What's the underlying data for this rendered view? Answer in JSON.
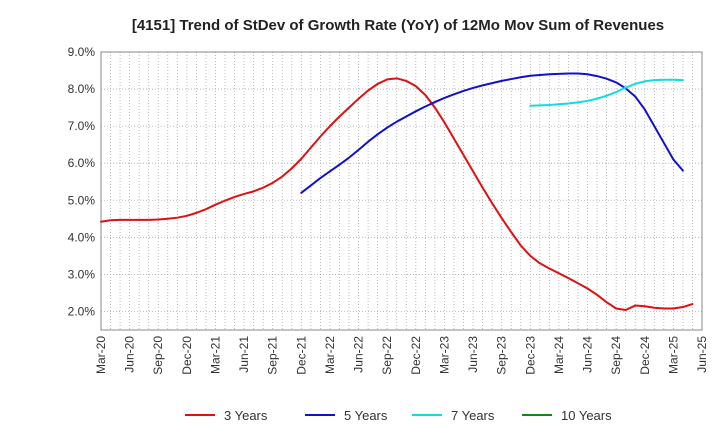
{
  "chart_data": {
    "type": "line",
    "title": "[4151]  Trend of StDev of Growth Rate (YoY) of 12Mo Mov Sum of Revenues",
    "xlabel": "",
    "ylabel": "",
    "ylim": [
      1.5,
      9.0
    ],
    "y_ticks": [
      2.0,
      3.0,
      4.0,
      5.0,
      6.0,
      7.0,
      8.0,
      9.0
    ],
    "y_tick_labels": [
      "2.0%",
      "3.0%",
      "4.0%",
      "5.0%",
      "6.0%",
      "7.0%",
      "8.0%",
      "9.0%"
    ],
    "x_tick_labels": [
      "Mar-20",
      "Jun-20",
      "Sep-20",
      "Dec-20",
      "Mar-21",
      "Jun-21",
      "Sep-21",
      "Dec-21",
      "Mar-22",
      "Jun-22",
      "Sep-22",
      "Dec-22",
      "Mar-23",
      "Jun-23",
      "Sep-23",
      "Dec-23",
      "Mar-24",
      "Jun-24",
      "Sep-24",
      "Dec-24",
      "Mar-25",
      "Jun-25"
    ],
    "grid": true,
    "legend_position": "bottom",
    "series": [
      {
        "name": "3 Years",
        "color": "#dd1111",
        "start_index": 0,
        "values": [
          4.42,
          4.46,
          4.47,
          4.47,
          4.47,
          4.47,
          4.48,
          4.5,
          4.53,
          4.58,
          4.66,
          4.76,
          4.88,
          4.99,
          5.09,
          5.17,
          5.24,
          5.34,
          5.47,
          5.64,
          5.86,
          6.12,
          6.42,
          6.72,
          7.0,
          7.26,
          7.5,
          7.74,
          7.96,
          8.14,
          8.26,
          8.29,
          8.22,
          8.08,
          7.84,
          7.5,
          7.1,
          6.66,
          6.22,
          5.78,
          5.34,
          4.92,
          4.52,
          4.14,
          3.78,
          3.5,
          3.3,
          3.16,
          3.03,
          2.9,
          2.76,
          2.62,
          2.45,
          2.25,
          2.08,
          2.04,
          2.16,
          2.14,
          2.1,
          2.08,
          2.08,
          2.12,
          2.2
        ]
      },
      {
        "name": "5 Years",
        "color": "#1111cc",
        "start_index": 21,
        "values": [
          5.2,
          5.4,
          5.6,
          5.78,
          5.96,
          6.15,
          6.36,
          6.58,
          6.78,
          6.96,
          7.12,
          7.26,
          7.4,
          7.53,
          7.65,
          7.76,
          7.86,
          7.95,
          8.03,
          8.1,
          8.16,
          8.22,
          8.27,
          8.32,
          8.36,
          8.38,
          8.4,
          8.41,
          8.42,
          8.42,
          8.4,
          8.35,
          8.28,
          8.18,
          8.02,
          7.8,
          7.45,
          7.0,
          6.55,
          6.1,
          5.8
        ]
      },
      {
        "name": "7 Years",
        "color": "#11dddd",
        "start_index": 45,
        "values": [
          7.55,
          7.56,
          7.57,
          7.59,
          7.61,
          7.64,
          7.68,
          7.74,
          7.82,
          7.92,
          8.04,
          8.14,
          8.21,
          8.24,
          8.25,
          8.25,
          8.24
        ]
      },
      {
        "name": "10 Years",
        "color": "#118811",
        "start_index": 0,
        "values": []
      }
    ]
  }
}
